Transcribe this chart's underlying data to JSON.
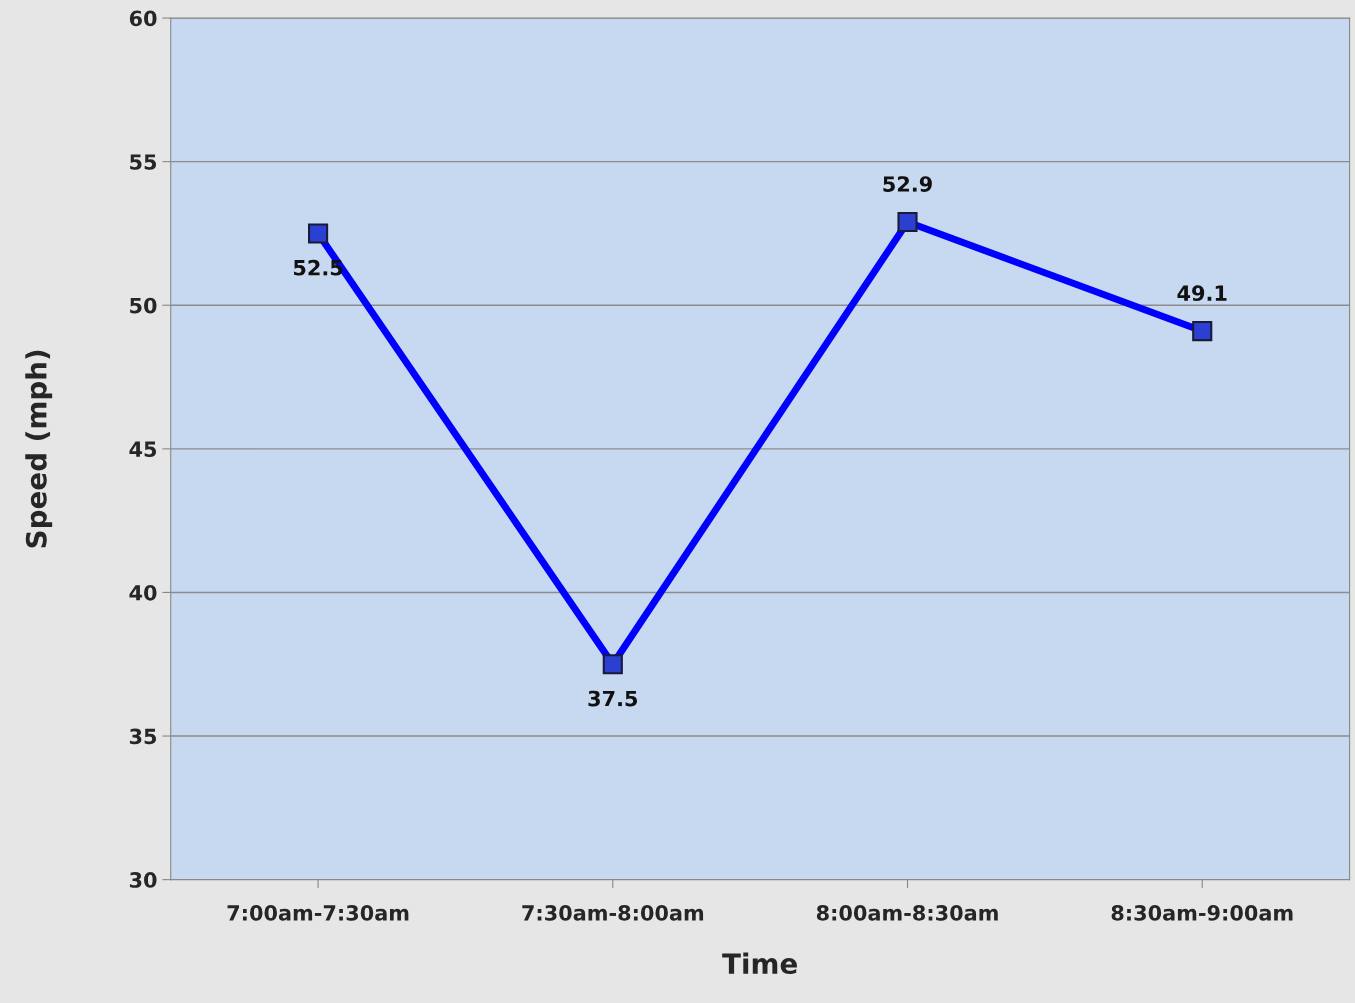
{
  "chart_data": {
    "type": "line",
    "xlabel": "Time",
    "ylabel": "Speed (mph)",
    "categories": [
      "7:00am-7:30am",
      "7:30am-8:00am",
      "8:00am-8:30am",
      "8:30am-9:00am"
    ],
    "series": [
      {
        "color": "#0000ff",
        "values": [
          52.5,
          37.5,
          52.9,
          49.1
        ]
      }
    ],
    "ylim": [
      30,
      60
    ],
    "yticks": [
      30,
      35,
      40,
      45,
      50,
      55,
      60
    ],
    "grid": "y",
    "marker": "square",
    "line_style": "solid",
    "data_labels": true
  }
}
